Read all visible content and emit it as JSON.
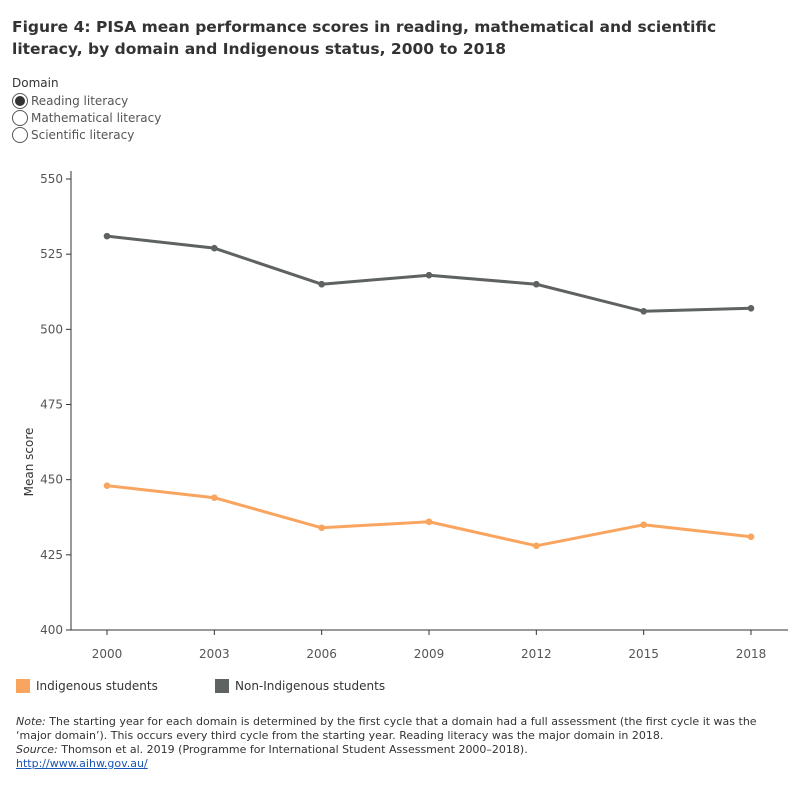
{
  "title": "Figure 4: PISA mean performance scores in reading, mathematical and scientific literacy, by domain and Indigenous status, 2000 to 2018",
  "filter": {
    "label": "Domain",
    "options": [
      "Reading literacy",
      "Mathematical literacy",
      "Scientific literacy"
    ],
    "selected_index": 0
  },
  "chart_data": {
    "type": "line",
    "title": "Figure 4: PISA mean performance scores in reading, mathematical and scientific literacy, by domain and Indigenous status, 2000 to 2018",
    "xlabel": "",
    "ylabel": "Mean score",
    "categories": [
      "2000",
      "2003",
      "2006",
      "2009",
      "2012",
      "2015",
      "2018"
    ],
    "y_ticks": [
      400,
      425,
      450,
      475,
      500,
      525,
      550
    ],
    "ylim": [
      400,
      550
    ],
    "grid": false,
    "legend_position": "bottom",
    "series": [
      {
        "name": "Indigenous students",
        "color": "#f9a55f",
        "values": [
          448,
          444,
          434,
          436,
          428,
          435,
          431
        ]
      },
      {
        "name": "Non-Indigenous students",
        "color": "#5f6262",
        "values": [
          531,
          527,
          515,
          518,
          515,
          506,
          507
        ]
      }
    ]
  },
  "notes": {
    "note_label": "Note:",
    "note_text": " The starting year for each domain is determined by the first cycle that a domain had a full assessment (the first cycle it was the ‘major domain’). This occurs every third cycle from the starting year. Reading literacy was the major domain in 2018.",
    "source_label": "Source:",
    "source_text": " Thomson et al. 2019 (Programme for International Student Assessment 2000–2018).",
    "link_text": "http://www.aihw.gov.au/"
  }
}
